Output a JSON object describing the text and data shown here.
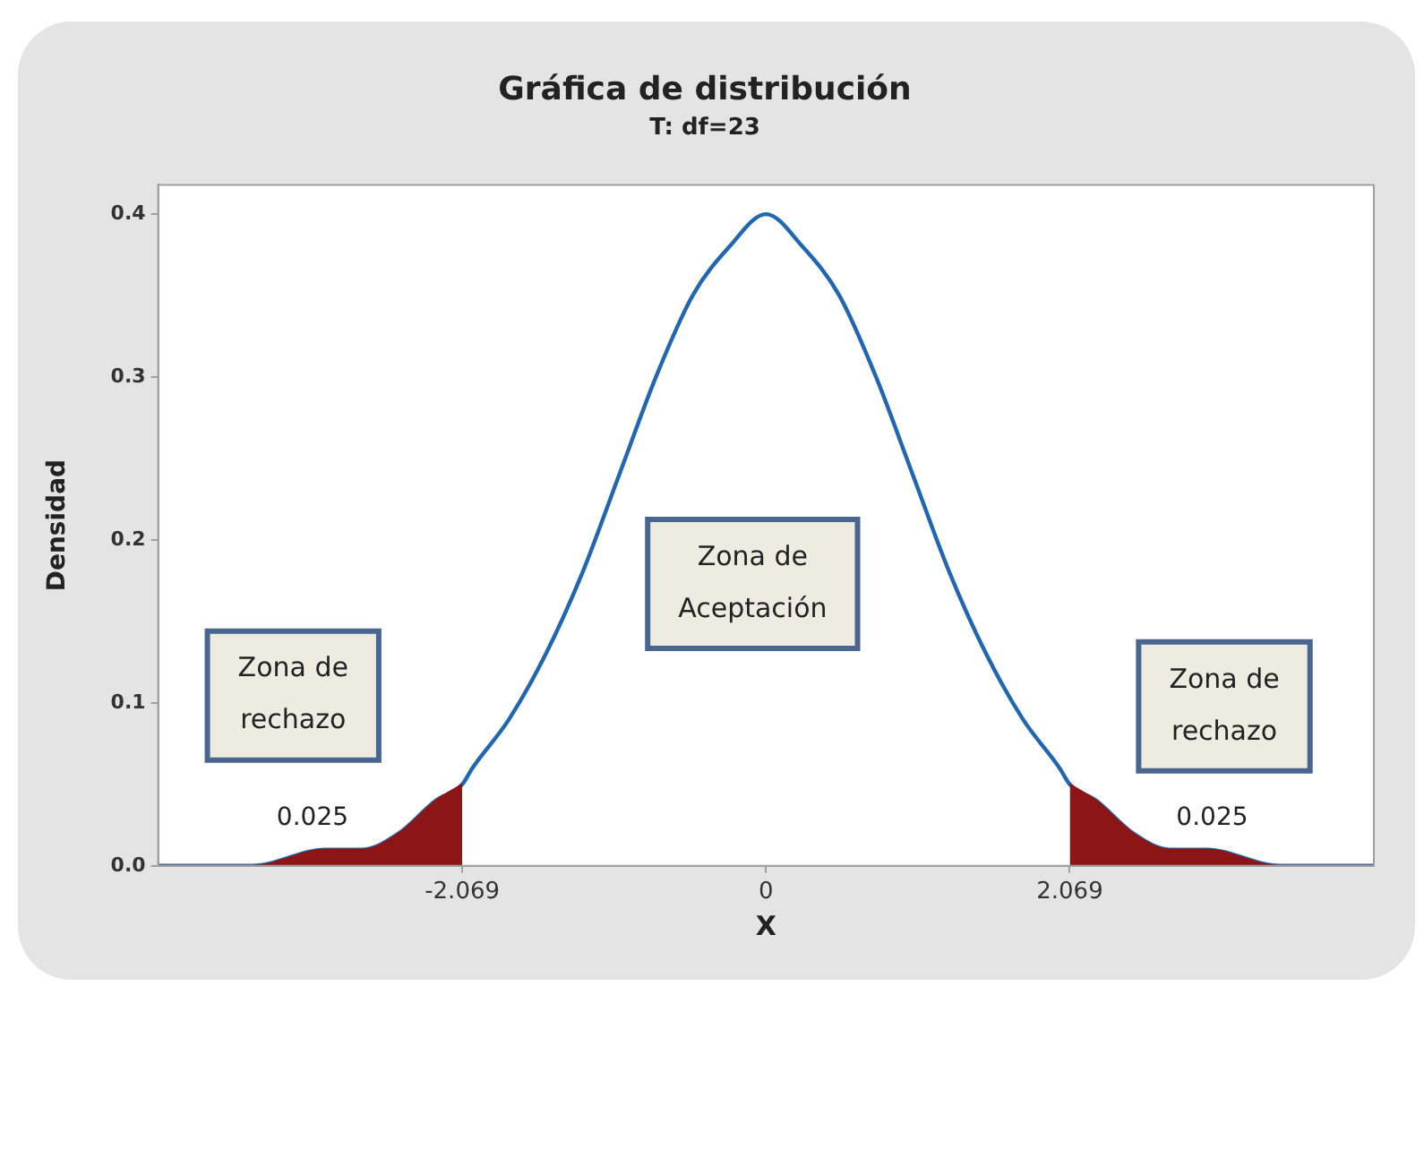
{
  "chart_data": {
    "type": "line",
    "title": "Gráfica de distribución",
    "subtitle": "T: df=23",
    "xlabel": "X",
    "ylabel": "Densidad",
    "legend": false,
    "marker": "none",
    "xlim": [
      -4.14,
      4.14
    ],
    "xticks": [
      -2.069,
      0,
      2.069
    ],
    "ylim": [
      0,
      0.418
    ],
    "yticks": [
      {
        "value": 0,
        "label": "0.0"
      },
      {
        "value": 0.1,
        "label": "0.1"
      },
      {
        "value": 0.2,
        "label": "0.2"
      },
      {
        "value": 0.3,
        "label": "0.3"
      },
      {
        "value": 0.4,
        "label": "0.4"
      }
    ],
    "series": [
      {
        "type": "area",
        "color": "#8c1515",
        "x": [
          -4.14,
          -3.5,
          -3,
          -2.75,
          -2.5,
          -2.25,
          -2.069
        ],
        "values": [
          0,
          0,
          0.01,
          0.01,
          0.02,
          0.04,
          0.05
        ]
      },
      {
        "type": "area",
        "color": "#8c1515",
        "x": [
          2.069,
          2.25,
          2.5,
          2.75,
          3,
          3.5,
          4.14
        ],
        "values": [
          0.05,
          0.04,
          0.02,
          0.01,
          0.01,
          0,
          0
        ]
      },
      {
        "color": "#2166b0",
        "x": [
          -4.14,
          -3.5,
          -3,
          -2.75,
          -2.5,
          -2.25,
          -2.069,
          -2,
          -1.75,
          -1.5,
          -1.25,
          -1,
          -0.75,
          -0.5,
          -0.25,
          0,
          0.25,
          0.5,
          0.75,
          1,
          1.25,
          1.5,
          1.75,
          2,
          2.069,
          2.25,
          2.5,
          2.75,
          3,
          3.5,
          4.14
        ],
        "values": [
          0,
          0,
          0.01,
          0.01,
          0.02,
          0.04,
          0.05,
          0.06,
          0.09,
          0.13,
          0.18,
          0.24,
          0.3,
          0.35,
          0.38,
          0.4,
          0.38,
          0.35,
          0.3,
          0.24,
          0.18,
          0.13,
          0.09,
          0.06,
          0.05,
          0.04,
          0.02,
          0.01,
          0.01,
          0,
          0
        ]
      }
    ],
    "annotations": [
      "Zona de\nrechazo",
      "Zona de\nAceptación",
      "Zona de\nrechazo",
      "0.025",
      "0.025"
    ]
  }
}
